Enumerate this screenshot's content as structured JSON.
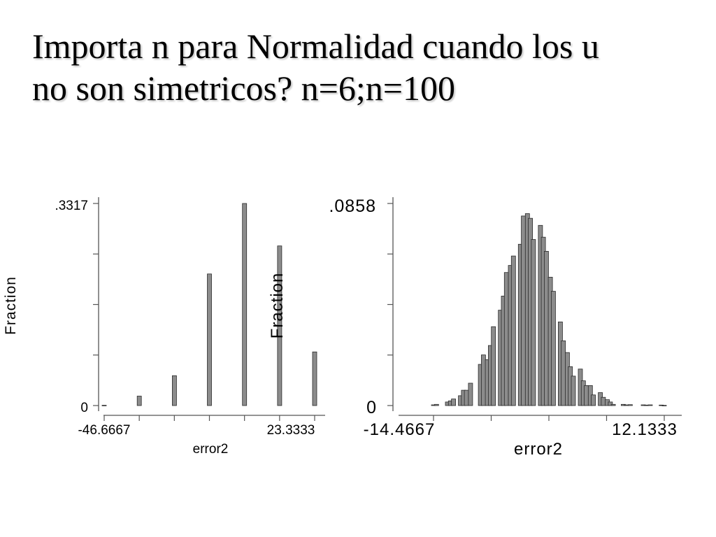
{
  "slide": {
    "title_lines": [
      "Importa n para Normalidad cuando los u",
      "no son simetricos?  n=6;n=100"
    ]
  },
  "colors": {
    "bar_fill": "#8c8c8c",
    "bar_stroke": "#2a2a2a",
    "axis": "#555555"
  },
  "chart_data": [
    {
      "type": "bar",
      "xlabel": "error2",
      "ylabel": "Fraction",
      "xlim": [
        -46.6667,
        23.3333
      ],
      "ylim": [
        0,
        0.3317
      ],
      "ytick_labels": [
        ".3317",
        "0"
      ],
      "xtick_labels": [
        "-46.6667",
        "23.3333"
      ],
      "x_minor_ticks": 5,
      "y_minor_ticks": 3,
      "x": [
        -46.67,
        -35.0,
        -23.33,
        -11.67,
        0.0,
        11.67,
        23.33
      ],
      "values": [
        0.0005,
        0.0155,
        0.049,
        0.216,
        0.3317,
        0.262,
        0.088
      ]
    },
    {
      "type": "bar",
      "xlabel": "error2",
      "ylabel": "Fraction",
      "xlim": [
        -14.4667,
        12.1333
      ],
      "ylim": [
        0,
        0.0858
      ],
      "ytick_labels": [
        ".0858",
        "0"
      ],
      "xtick_labels": [
        "-14.4667",
        "12.1333"
      ],
      "x_minor_ticks": 3,
      "y_minor_ticks": 3,
      "x": [
        -12.9,
        -12.6,
        -11.5,
        -11.2,
        -10.9,
        -10.2,
        -9.9,
        -9.6,
        -9.2,
        -8.2,
        -7.9,
        -7.5,
        -7.2,
        -6.9,
        -6.2,
        -5.9,
        -5.6,
        -5.2,
        -4.9,
        -4.2,
        -3.9,
        -3.5,
        -3.2,
        -2.9,
        -2.2,
        -1.9,
        -1.6,
        -1.2,
        -0.9,
        -0.2,
        0.1,
        0.5,
        0.8,
        1.1,
        1.8,
        2.1,
        2.4,
        2.8,
        3.1,
        3.8,
        4.1,
        4.5,
        4.8,
        5.1,
        6.1,
        6.4,
        6.8,
        8.1,
        8.4,
        8.8,
        9.9,
        10.2
      ],
      "values": [
        0.0003,
        0.0005,
        0.0015,
        0.002,
        0.0028,
        0.0042,
        0.0065,
        0.0065,
        0.0095,
        0.0175,
        0.0215,
        0.0195,
        0.0255,
        0.0335,
        0.0405,
        0.0465,
        0.0565,
        0.0595,
        0.0635,
        0.0685,
        0.0805,
        0.0815,
        0.0795,
        0.0705,
        0.0765,
        0.0715,
        0.0655,
        0.0545,
        0.0485,
        0.0355,
        0.0275,
        0.0225,
        0.0165,
        0.0125,
        0.0155,
        0.0105,
        0.0085,
        0.0085,
        0.0045,
        0.0055,
        0.0035,
        0.0025,
        0.0015,
        0.0005,
        0.0005,
        0.0003,
        0.0004,
        0.0003,
        0.0002,
        0.0003,
        0.0002,
        0.0001
      ]
    }
  ]
}
